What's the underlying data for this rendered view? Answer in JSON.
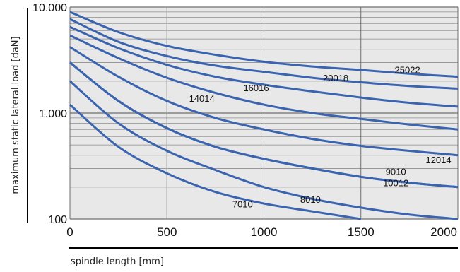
{
  "chart_data": {
    "type": "line",
    "title": "",
    "xlabel": "spindle length [mm]",
    "ylabel": "maximum static lateral load [daN]",
    "x_scale": "linear",
    "y_scale": "log",
    "xlim": [
      0,
      2000
    ],
    "ylim": [
      100,
      10000
    ],
    "x_ticks": [
      {
        "value": 0,
        "label": "0"
      },
      {
        "value": 500,
        "label": "500"
      },
      {
        "value": 1000,
        "label": "1000"
      },
      {
        "value": 1500,
        "label": "1500"
      },
      {
        "value": 2000,
        "label": "2000"
      }
    ],
    "y_ticks": [
      {
        "value": 100,
        "label": "100"
      },
      {
        "value": 1000,
        "label": "1.000"
      },
      {
        "value": 10000,
        "label": "10.000"
      }
    ],
    "grid": true,
    "legend": "none",
    "colors": {
      "series": "#3a64b0",
      "plot_background": "#e8e8e8",
      "grid": "#8c8c8c"
    },
    "series": [
      {
        "name": "25022",
        "label_at": [
          1740,
          2500
        ],
        "x": [
          0,
          250,
          500,
          750,
          1000,
          1250,
          1500,
          1750,
          2000
        ],
        "y": [
          9000,
          5800,
          4300,
          3550,
          3050,
          2750,
          2550,
          2350,
          2200
        ]
      },
      {
        "name": "20018",
        "label_at": [
          1370,
          2100
        ],
        "x": [
          0,
          250,
          500,
          750,
          1000,
          1250,
          1500,
          1750,
          2000
        ],
        "y": [
          7700,
          4700,
          3450,
          2800,
          2450,
          2150,
          1950,
          1800,
          1700
        ]
      },
      {
        "name": "16016",
        "label_at": [
          960,
          1700
        ],
        "x": [
          0,
          250,
          500,
          750,
          1000,
          1250,
          1500,
          1750,
          2000
        ],
        "y": [
          6500,
          4100,
          2850,
          2200,
          1850,
          1600,
          1400,
          1250,
          1150
        ]
      },
      {
        "name": "14014",
        "label_at": [
          680,
          1350
        ],
        "x": [
          0,
          250,
          500,
          750,
          1000,
          1250,
          1500,
          1750,
          2000
        ],
        "y": [
          5400,
          3300,
          2150,
          1550,
          1200,
          1000,
          880,
          780,
          700
        ]
      },
      {
        "name": "12014",
        "label_at": [
          1900,
          355
        ],
        "x": [
          0,
          250,
          500,
          750,
          1000,
          1250,
          1500,
          1750,
          2000
        ],
        "y": [
          4200,
          2200,
          1300,
          900,
          700,
          570,
          490,
          440,
          400
        ]
      },
      {
        "name": "10012",
        "label_at": [
          1680,
          215
        ],
        "x": [
          0,
          250,
          500,
          750,
          1000,
          1250,
          1500,
          1750,
          2000
        ],
        "y": [
          3000,
          1300,
          720,
          480,
          370,
          300,
          250,
          220,
          200
        ]
      },
      {
        "name": "9010",
        "label_at": [
          1680,
          275
        ],
        "x": [
          0,
          250,
          500,
          750,
          1000,
          1250,
          1500,
          1750,
          2000
        ],
        "y": [
          3000,
          1300,
          720,
          480,
          370,
          300,
          250,
          220,
          200
        ]
      },
      {
        "name": "8010",
        "label_at": [
          1240,
          150
        ],
        "x": [
          0,
          250,
          500,
          750,
          1000,
          1250,
          1500,
          1750,
          2000
        ],
        "y": [
          2000,
          800,
          440,
          290,
          200,
          155,
          128,
          110,
          100
        ]
      },
      {
        "name": "7010",
        "label_at": [
          890,
          136
        ],
        "x": [
          0,
          250,
          500,
          750,
          1000,
          1250,
          1500
        ],
        "y": [
          1200,
          480,
          270,
          180,
          140,
          118,
          100
        ]
      }
    ]
  }
}
